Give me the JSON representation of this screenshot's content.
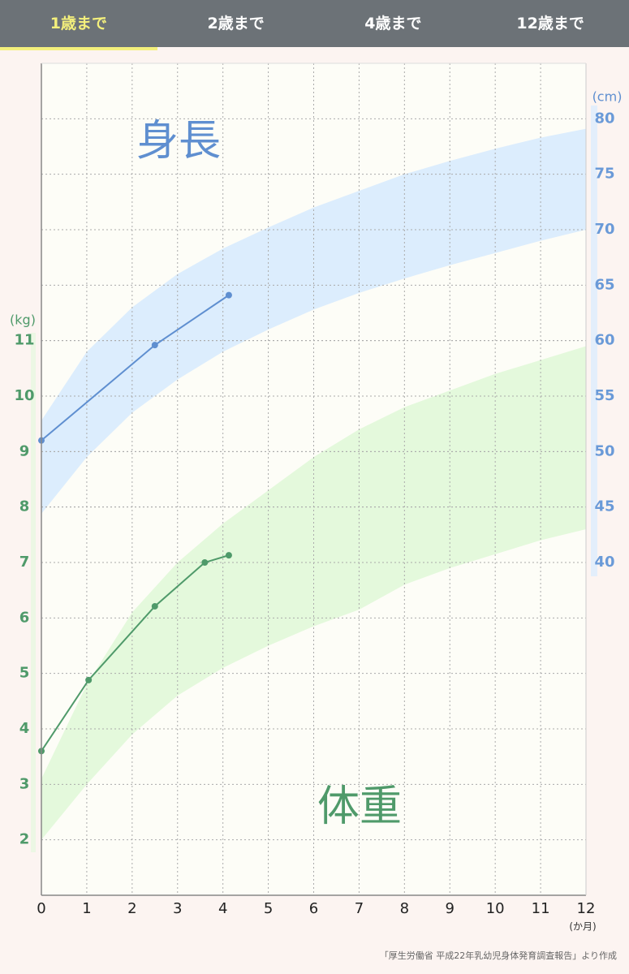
{
  "tabs": {
    "labels": [
      "1歳まで",
      "2歳まで",
      "4歳まで",
      "12歳まで"
    ],
    "active": 0
  },
  "chart_data": {
    "type": "line",
    "xlim": [
      0,
      12
    ],
    "xticks": [
      0,
      1,
      2,
      3,
      4,
      5,
      6,
      7,
      8,
      9,
      10,
      11,
      12
    ],
    "x_label": "(か月)",
    "ylim": [
      1,
      16
    ],
    "yticks": [
      2,
      3,
      4,
      5,
      6,
      7,
      8,
      9,
      10,
      11
    ],
    "y_label": "(kg)",
    "y2lim": [
      10,
      85
    ],
    "y2ticks": [
      40,
      45,
      50,
      55,
      60,
      65,
      70,
      75,
      80
    ],
    "y2_label": "(cm)",
    "grid": true,
    "series": [
      {
        "name": "身長",
        "color": "#5f8fd0",
        "axis": "y2",
        "x": [
          0,
          2.5,
          4.13
        ],
        "values": [
          51,
          59.6,
          64.1
        ]
      },
      {
        "name": "体重",
        "color": "#4f9a6a",
        "axis": "y",
        "x": [
          0,
          1.04,
          2.5,
          3.6,
          4.13
        ],
        "values": [
          3.6,
          4.88,
          6.21,
          7.0,
          7.13
        ]
      }
    ],
    "bands": [
      {
        "axis": "y2",
        "color": "#dcedfd",
        "x": [
          0,
          1,
          2,
          3,
          4,
          5,
          6,
          7,
          8,
          9,
          10,
          11,
          12
        ],
        "high": [
          52.8,
          59,
          63,
          66,
          68.3,
          70.2,
          72,
          73.5,
          75,
          76.2,
          77.3,
          78.3,
          79.1
        ],
        "low": [
          44.4,
          49.5,
          53.5,
          56.5,
          59,
          61,
          62.8,
          64.3,
          65.6,
          66.8,
          67.9,
          69,
          70
        ]
      },
      {
        "axis": "y",
        "color": "#e4f9dc",
        "x": [
          0,
          1,
          2,
          3,
          4,
          5,
          6,
          7,
          8,
          9,
          10,
          11,
          12
        ],
        "high": [
          3.1,
          4.8,
          6.1,
          7.0,
          7.7,
          8.3,
          8.9,
          9.4,
          9.8,
          10.1,
          10.4,
          10.65,
          10.9
        ],
        "low": [
          2.0,
          3.0,
          3.9,
          4.6,
          5.1,
          5.5,
          5.85,
          6.15,
          6.6,
          6.9,
          7.15,
          7.4,
          7.6
        ]
      }
    ],
    "source": "「厚生労働省 平成22年乳幼児身体発育調査報告」より作成"
  }
}
